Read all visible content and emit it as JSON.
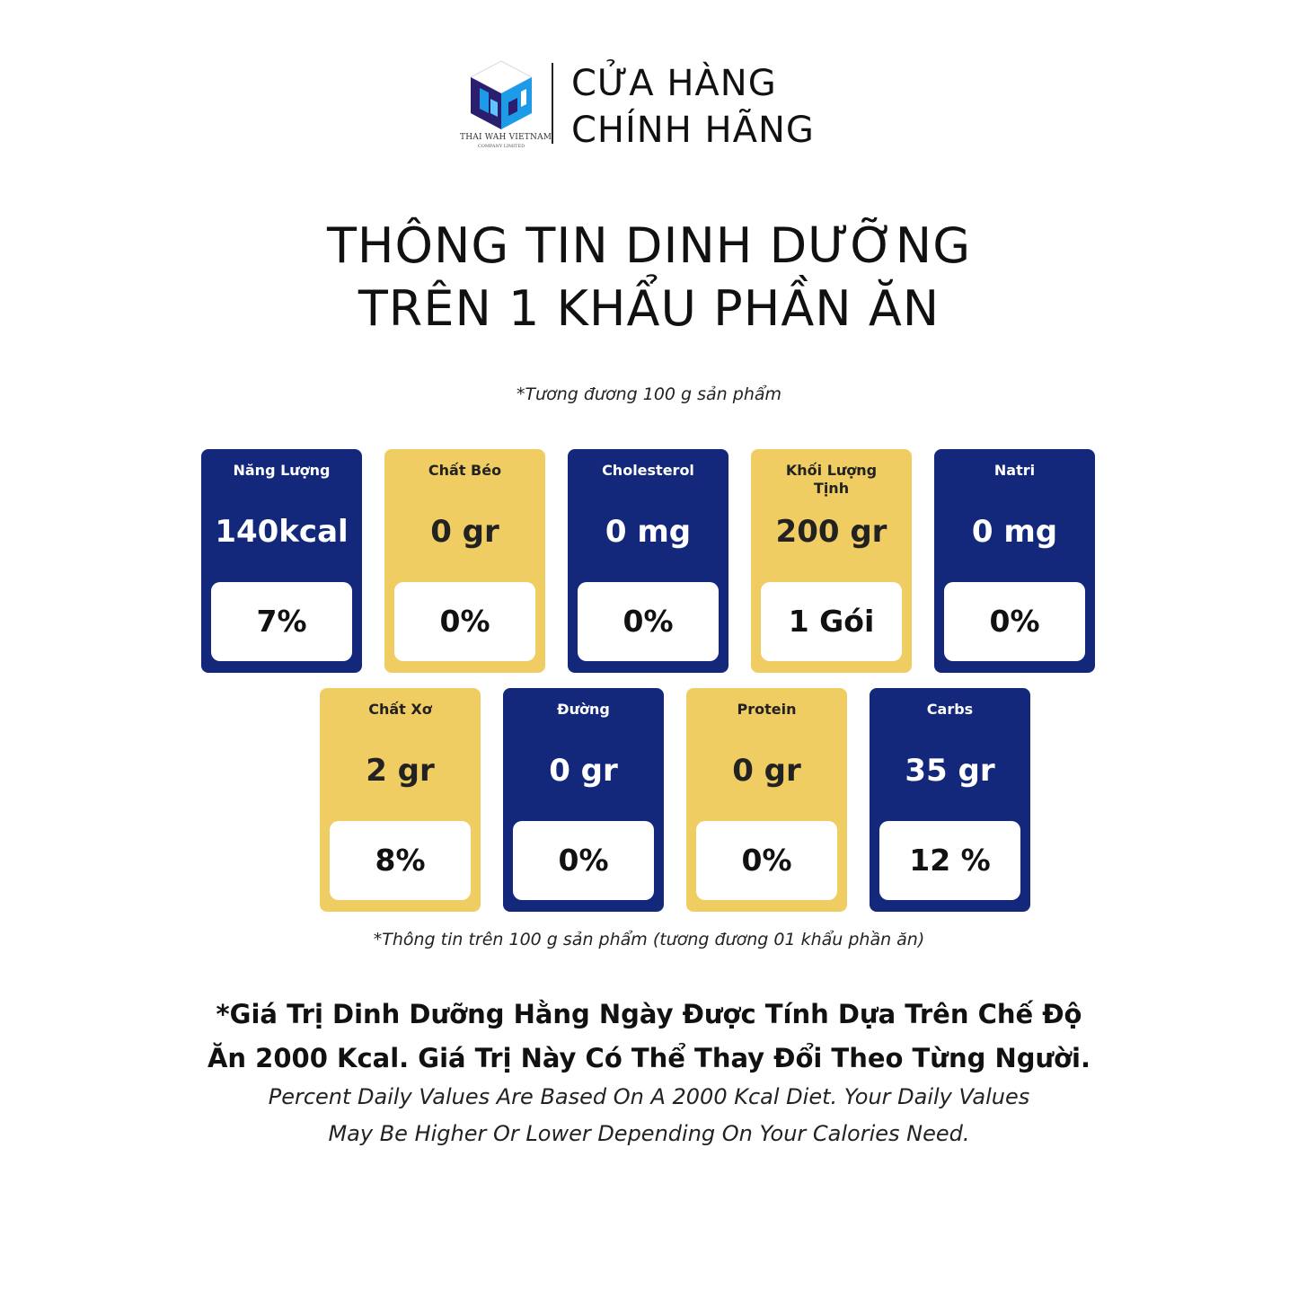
{
  "header": {
    "logo_icon": "thai-wah-cube-logo",
    "logo_text": "THAI WAH VIETNAM",
    "logo_subtext": "COMPANY LIMITED",
    "store_line1": "CỬA HÀNG",
    "store_line2": "CHÍNH HÃNG"
  },
  "title": {
    "line1": "THÔNG TIN DINH DƯỠNG",
    "line2": "TRÊN 1 KHẨU PHẦN ĂN"
  },
  "subnote": "*Tương đương 100 g sản phẩm",
  "colors": {
    "navy": "#13287a",
    "gold": "#efcd63",
    "logo_dark": "#2a1f6e",
    "logo_blue": "#1e9be8"
  },
  "cards": [
    {
      "label": "Năng Lượng",
      "amount": "140kcal",
      "percent": "7%",
      "theme": "blue"
    },
    {
      "label": "Chất Béo",
      "amount": "0 gr",
      "percent": "0%",
      "theme": "yellow"
    },
    {
      "label": "Cholesterol",
      "amount": "0 mg",
      "percent": "0%",
      "theme": "blue"
    },
    {
      "label": "Khối Lượng Tịnh",
      "amount": "200 gr",
      "percent": "1 Gói",
      "theme": "yellow"
    },
    {
      "label": "Natri",
      "amount": "0 mg",
      "percent": "0%",
      "theme": "blue"
    },
    {
      "label": "Chất Xơ",
      "amount": "2 gr",
      "percent": "8%",
      "theme": "yellow"
    },
    {
      "label": "Đường",
      "amount": "0 gr",
      "percent": "0%",
      "theme": "blue"
    },
    {
      "label": "Protein",
      "amount": "0 gr",
      "percent": "0%",
      "theme": "yellow"
    },
    {
      "label": "Carbs",
      "amount": "35 gr",
      "percent": "12 %",
      "theme": "blue"
    }
  ],
  "footnote": "*Thông tin trên 100 g sản phẩm (tương đương 01 khẩu phần ăn)",
  "disclaimer": {
    "vn_line1": "*Giá Trị Dinh Dưỡng Hằng Ngày Được Tính Dựa Trên Chế Độ",
    "vn_line2": "Ăn 2000 Kcal. Giá Trị Này Có Thể Thay Đổi Theo Từng Người.",
    "en_line1": "Percent Daily Values Are Based On A 2000 Kcal Diet. Your Daily Values",
    "en_line2": "May Be Higher Or Lower Depending On Your Calories Need."
  }
}
